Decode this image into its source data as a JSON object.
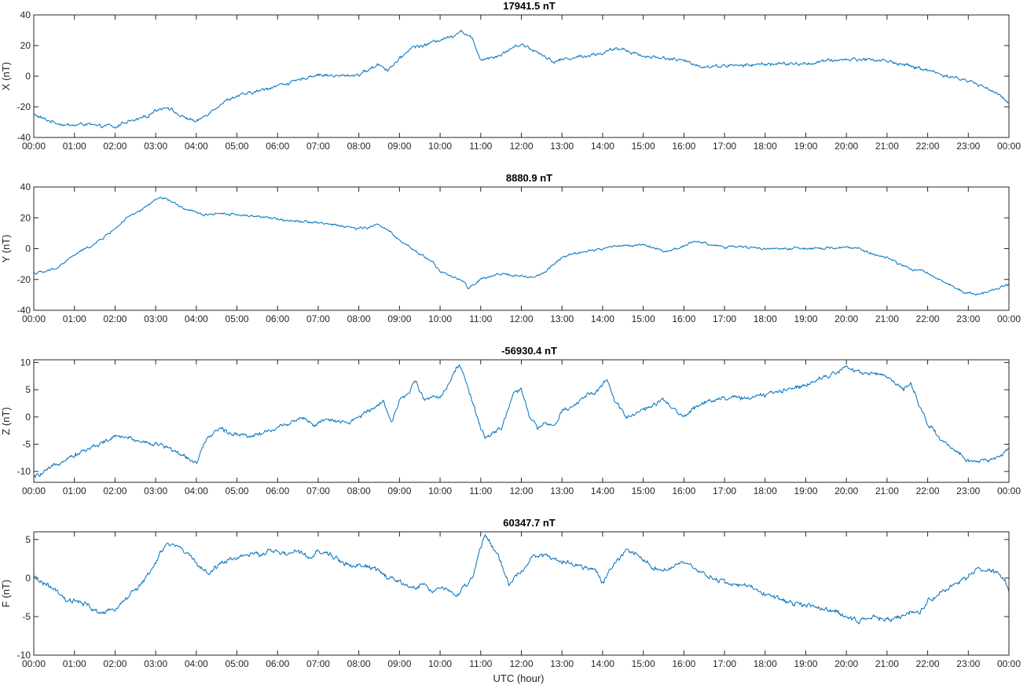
{
  "figure": {
    "line_color": "#0072BD",
    "xlabel": "UTC (hour)"
  },
  "chart_data": [
    {
      "type": "line",
      "title": "17941.5 nT",
      "ylabel": "X (nT)",
      "xlabel": "",
      "xlim": [
        0,
        24
      ],
      "ylim": [
        -40,
        40
      ],
      "yticks": [
        -40,
        -20,
        0,
        20,
        40
      ],
      "xticks": [
        "00:00",
        "01:00",
        "02:00",
        "03:00",
        "04:00",
        "05:00",
        "06:00",
        "07:00",
        "08:00",
        "09:00",
        "10:00",
        "11:00",
        "12:00",
        "13:00",
        "14:00",
        "15:00",
        "16:00",
        "17:00",
        "18:00",
        "19:00",
        "20:00",
        "21:00",
        "22:00",
        "23:00",
        "00:00"
      ],
      "noise": 1.2,
      "series": [
        {
          "color": "#0072BD",
          "x": [
            0,
            0.25,
            0.5,
            0.8,
            1.0,
            1.3,
            1.6,
            1.85,
            2.0,
            2.2,
            2.5,
            2.8,
            3.0,
            3.3,
            3.6,
            3.85,
            4.0,
            4.2,
            4.5,
            4.8,
            5.0,
            5.5,
            6.0,
            6.5,
            6.8,
            7.0,
            7.5,
            8.0,
            8.3,
            8.5,
            8.7,
            9.0,
            9.3,
            9.6,
            10.0,
            10.3,
            10.5,
            10.8,
            11.0,
            11.2,
            11.5,
            11.8,
            12.0,
            12.3,
            12.6,
            12.8,
            13.0,
            13.5,
            14.0,
            14.2,
            14.5,
            15.0,
            15.5,
            16.0,
            16.5,
            17.0,
            17.5,
            18.0,
            18.5,
            19.0,
            19.5,
            20.0,
            20.5,
            21.0,
            21.5,
            22.0,
            22.5,
            23.0,
            23.5,
            24.0
          ],
          "y": [
            -25,
            -28,
            -30,
            -32,
            -32,
            -31,
            -33,
            -32,
            -34,
            -30,
            -29,
            -26,
            -22,
            -20,
            -26,
            -28,
            -30,
            -26,
            -20,
            -15,
            -13,
            -10,
            -6,
            -3,
            0,
            1,
            0,
            1,
            5,
            8,
            4,
            11,
            19,
            20,
            24,
            26,
            30,
            24,
            11,
            12,
            14,
            19,
            21,
            17,
            13,
            9,
            11,
            13,
            15,
            17,
            18,
            13,
            12,
            10,
            6,
            7,
            7,
            8,
            8,
            8,
            10,
            11,
            11,
            10,
            7,
            4,
            0,
            -3,
            -8,
            -17
          ]
        }
      ]
    },
    {
      "type": "line",
      "title": "8880.9 nT",
      "ylabel": "Y (nT)",
      "xlabel": "",
      "xlim": [
        0,
        24
      ],
      "ylim": [
        -40,
        40
      ],
      "yticks": [
        -40,
        -20,
        0,
        20,
        40
      ],
      "xticks": [
        "00:00",
        "01:00",
        "02:00",
        "03:00",
        "04:00",
        "05:00",
        "06:00",
        "07:00",
        "08:00",
        "09:00",
        "10:00",
        "11:00",
        "12:00",
        "13:00",
        "14:00",
        "15:00",
        "16:00",
        "17:00",
        "18:00",
        "19:00",
        "20:00",
        "21:00",
        "22:00",
        "23:00",
        "00:00"
      ],
      "noise": 0.9,
      "series": [
        {
          "color": "#0072BD",
          "x": [
            0,
            0.3,
            0.6,
            0.9,
            1.2,
            1.5,
            1.8,
            2.0,
            2.3,
            2.6,
            2.9,
            3.1,
            3.3,
            3.6,
            3.9,
            4.2,
            4.6,
            5.0,
            5.5,
            6.0,
            6.5,
            7.0,
            7.5,
            8.0,
            8.3,
            8.5,
            8.8,
            9.0,
            9.3,
            9.6,
            9.8,
            10.0,
            10.3,
            10.6,
            10.7,
            11.0,
            11.3,
            11.6,
            12.0,
            12.3,
            12.6,
            12.8,
            13.0,
            13.3,
            13.6,
            14.0,
            14.4,
            14.8,
            15.0,
            15.3,
            15.6,
            16.0,
            16.3,
            16.6,
            17.0,
            17.5,
            18.0,
            18.5,
            19.0,
            19.5,
            20.0,
            20.3,
            20.6,
            21.0,
            21.3,
            21.6,
            22.0,
            22.3,
            22.6,
            22.9,
            23.2,
            23.5,
            23.8,
            24.0
          ],
          "y": [
            -16,
            -15,
            -12,
            -6,
            -1,
            3,
            9,
            13,
            20,
            24,
            30,
            33,
            32,
            27,
            24,
            22,
            23,
            22,
            21,
            19,
            18,
            17,
            15,
            13,
            14,
            16,
            10,
            5,
            0,
            -5,
            -8,
            -15,
            -18,
            -22,
            -26,
            -20,
            -18,
            -16,
            -18,
            -19,
            -15,
            -10,
            -6,
            -3,
            -2,
            0,
            2,
            2,
            3,
            0,
            -2,
            2,
            5,
            3,
            1,
            1,
            0,
            0,
            0,
            0,
            1,
            0,
            -3,
            -6,
            -10,
            -13,
            -16,
            -20,
            -24,
            -28,
            -30,
            -28,
            -25,
            -23
          ]
        }
      ]
    },
    {
      "type": "line",
      "title": "-56930.4 nT",
      "ylabel": "Z (nT)",
      "xlabel": "",
      "xlim": [
        0,
        24
      ],
      "ylim": [
        -12,
        10.5
      ],
      "yticks": [
        -10,
        -5,
        0,
        5,
        10
      ],
      "xticks": [
        "00:00",
        "01:00",
        "02:00",
        "03:00",
        "04:00",
        "05:00",
        "06:00",
        "07:00",
        "08:00",
        "09:00",
        "10:00",
        "11:00",
        "12:00",
        "13:00",
        "14:00",
        "15:00",
        "16:00",
        "17:00",
        "18:00",
        "19:00",
        "20:00",
        "21:00",
        "22:00",
        "23:00",
        "00:00"
      ],
      "noise": 0.45,
      "series": [
        {
          "color": "#0072BD",
          "x": [
            0,
            0.2,
            0.5,
            0.8,
            1.0,
            1.3,
            1.6,
            1.9,
            2.1,
            2.4,
            2.7,
            3.0,
            3.3,
            3.5,
            3.8,
            4.0,
            4.2,
            4.4,
            4.6,
            4.8,
            5.0,
            5.3,
            5.6,
            6.0,
            6.3,
            6.6,
            6.9,
            7.2,
            7.5,
            7.8,
            8.0,
            8.3,
            8.6,
            8.8,
            9.0,
            9.2,
            9.4,
            9.6,
            9.8,
            10.0,
            10.2,
            10.4,
            10.5,
            10.7,
            10.9,
            11.1,
            11.3,
            11.5,
            11.8,
            12.0,
            12.2,
            12.4,
            12.6,
            12.8,
            13.0,
            13.3,
            13.6,
            13.9,
            14.1,
            14.3,
            14.6,
            14.9,
            15.2,
            15.5,
            15.8,
            16.0,
            16.3,
            16.6,
            17.0,
            17.5,
            18.0,
            18.5,
            19.0,
            19.5,
            19.8,
            20.0,
            20.4,
            20.8,
            21.1,
            21.4,
            21.6,
            21.8,
            22.0,
            22.3,
            22.6,
            22.8,
            23.0,
            23.3,
            23.6,
            23.8,
            24.0
          ],
          "y": [
            -11,
            -10.5,
            -9,
            -7.5,
            -7,
            -6,
            -5,
            -4,
            -3.5,
            -4,
            -4.5,
            -5,
            -5.5,
            -6.5,
            -7.5,
            -8.5,
            -5,
            -3,
            -2,
            -3,
            -3,
            -3.5,
            -3,
            -2,
            -1,
            0,
            -1.5,
            -0.5,
            -1,
            -1,
            0,
            1.5,
            3,
            -1,
            3,
            4,
            7,
            3,
            4,
            3.5,
            6,
            9,
            9.5,
            5,
            0,
            -4,
            -3,
            -2,
            4,
            5,
            0,
            -2,
            -1,
            -2,
            1,
            2,
            4,
            5,
            7,
            3,
            0,
            1,
            2,
            3,
            1,
            0,
            2,
            3,
            3.5,
            3.5,
            4,
            5,
            6,
            7.5,
            8.5,
            9,
            8,
            8,
            7,
            5,
            6,
            2,
            -1,
            -4,
            -6,
            -7,
            -8,
            -8,
            -8,
            -7,
            -6
          ]
        }
      ]
    },
    {
      "type": "line",
      "title": "60347.7 nT",
      "ylabel": "F (nT)",
      "xlabel": "UTC (hour)",
      "xlim": [
        0,
        24
      ],
      "ylim": [
        -10,
        6
      ],
      "yticks": [
        -10,
        -5,
        0,
        5
      ],
      "xticks": [
        "00:00",
        "01:00",
        "02:00",
        "03:00",
        "04:00",
        "05:00",
        "06:00",
        "07:00",
        "08:00",
        "09:00",
        "10:00",
        "11:00",
        "12:00",
        "13:00",
        "14:00",
        "15:00",
        "16:00",
        "17:00",
        "18:00",
        "19:00",
        "20:00",
        "21:00",
        "22:00",
        "23:00",
        "00:00"
      ],
      "noise": 0.35,
      "series": [
        {
          "color": "#0072BD",
          "x": [
            0,
            0.2,
            0.5,
            0.8,
            1.0,
            1.3,
            1.6,
            1.8,
            2.0,
            2.3,
            2.6,
            2.9,
            3.1,
            3.3,
            3.6,
            3.9,
            4.1,
            4.3,
            4.6,
            4.9,
            5.2,
            5.5,
            5.8,
            6.0,
            6.2,
            6.5,
            6.8,
            7.0,
            7.3,
            7.6,
            7.9,
            8.2,
            8.5,
            8.7,
            9.0,
            9.2,
            9.4,
            9.6,
            9.8,
            10.0,
            10.2,
            10.4,
            10.6,
            10.8,
            11.0,
            11.1,
            11.3,
            11.5,
            11.7,
            11.9,
            12.1,
            12.3,
            12.6,
            12.9,
            13.2,
            13.5,
            13.8,
            14.0,
            14.3,
            14.6,
            14.9,
            15.2,
            15.5,
            15.8,
            16.0,
            16.3,
            16.7,
            17.0,
            17.5,
            18.0,
            18.5,
            19.0,
            19.5,
            20.0,
            20.3,
            20.7,
            21.0,
            21.3,
            21.5,
            21.8,
            22.0,
            22.3,
            22.6,
            22.9,
            23.2,
            23.5,
            23.8,
            24.0
          ],
          "y": [
            0,
            -0.5,
            -1.5,
            -3,
            -3,
            -3.5,
            -4.5,
            -4.5,
            -4,
            -2.5,
            -1,
            1,
            3,
            4.5,
            4,
            2.5,
            1.5,
            0.5,
            2,
            2.5,
            3,
            3,
            3.5,
            3.5,
            3,
            3.5,
            2.5,
            3.5,
            3,
            2,
            1.5,
            1.5,
            1,
            0,
            -0.5,
            -1,
            -1.5,
            -0.5,
            -2,
            -1,
            -1.5,
            -2.5,
            -1,
            0,
            4,
            5.5,
            4,
            2,
            -1,
            0.5,
            1.5,
            3,
            3,
            2,
            2,
            1.5,
            1,
            -0.5,
            2,
            3.5,
            3,
            1.5,
            1,
            1.5,
            2,
            1,
            0,
            -0.5,
            -1,
            -2,
            -3,
            -3.5,
            -4,
            -5,
            -5.5,
            -5,
            -5.5,
            -5,
            -4.5,
            -4.5,
            -3,
            -2,
            -1,
            0,
            1,
            1,
            0.5,
            -1.5
          ]
        }
      ]
    }
  ]
}
